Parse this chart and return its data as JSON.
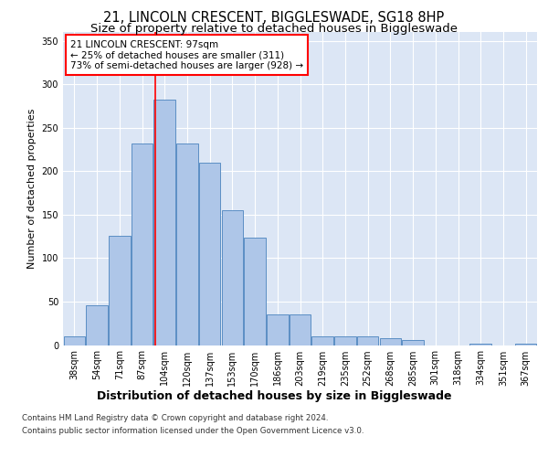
{
  "title": "21, LINCOLN CRESCENT, BIGGLESWADE, SG18 8HP",
  "subtitle": "Size of property relative to detached houses in Biggleswade",
  "xlabel": "Distribution of detached houses by size in Biggleswade",
  "ylabel": "Number of detached properties",
  "categories": [
    "38sqm",
    "54sqm",
    "71sqm",
    "87sqm",
    "104sqm",
    "120sqm",
    "137sqm",
    "153sqm",
    "170sqm",
    "186sqm",
    "203sqm",
    "219sqm",
    "235sqm",
    "252sqm",
    "268sqm",
    "285sqm",
    "301sqm",
    "318sqm",
    "334sqm",
    "351sqm",
    "367sqm"
  ],
  "values": [
    10,
    46,
    126,
    232,
    282,
    232,
    210,
    155,
    124,
    35,
    35,
    10,
    10,
    10,
    8,
    6,
    0,
    0,
    2,
    0,
    2
  ],
  "bar_color": "#aec6e8",
  "bar_edge_color": "#5b8ec4",
  "annotation_title": "21 LINCOLN CRESCENT: 97sqm",
  "annotation_line1": "← 25% of detached houses are smaller (311)",
  "annotation_line2": "73% of semi-detached houses are larger (928) →",
  "ylim": [
    0,
    360
  ],
  "yticks": [
    0,
    50,
    100,
    150,
    200,
    250,
    300,
    350
  ],
  "background_color": "#dce6f5",
  "footer1": "Contains HM Land Registry data © Crown copyright and database right 2024.",
  "footer2": "Contains public sector information licensed under the Open Government Licence v3.0.",
  "title_fontsize": 10.5,
  "subtitle_fontsize": 9.5,
  "xlabel_fontsize": 9,
  "ylabel_fontsize": 8,
  "tick_fontsize": 7,
  "annotation_fontsize": 7.5,
  "footer_fontsize": 6.2
}
